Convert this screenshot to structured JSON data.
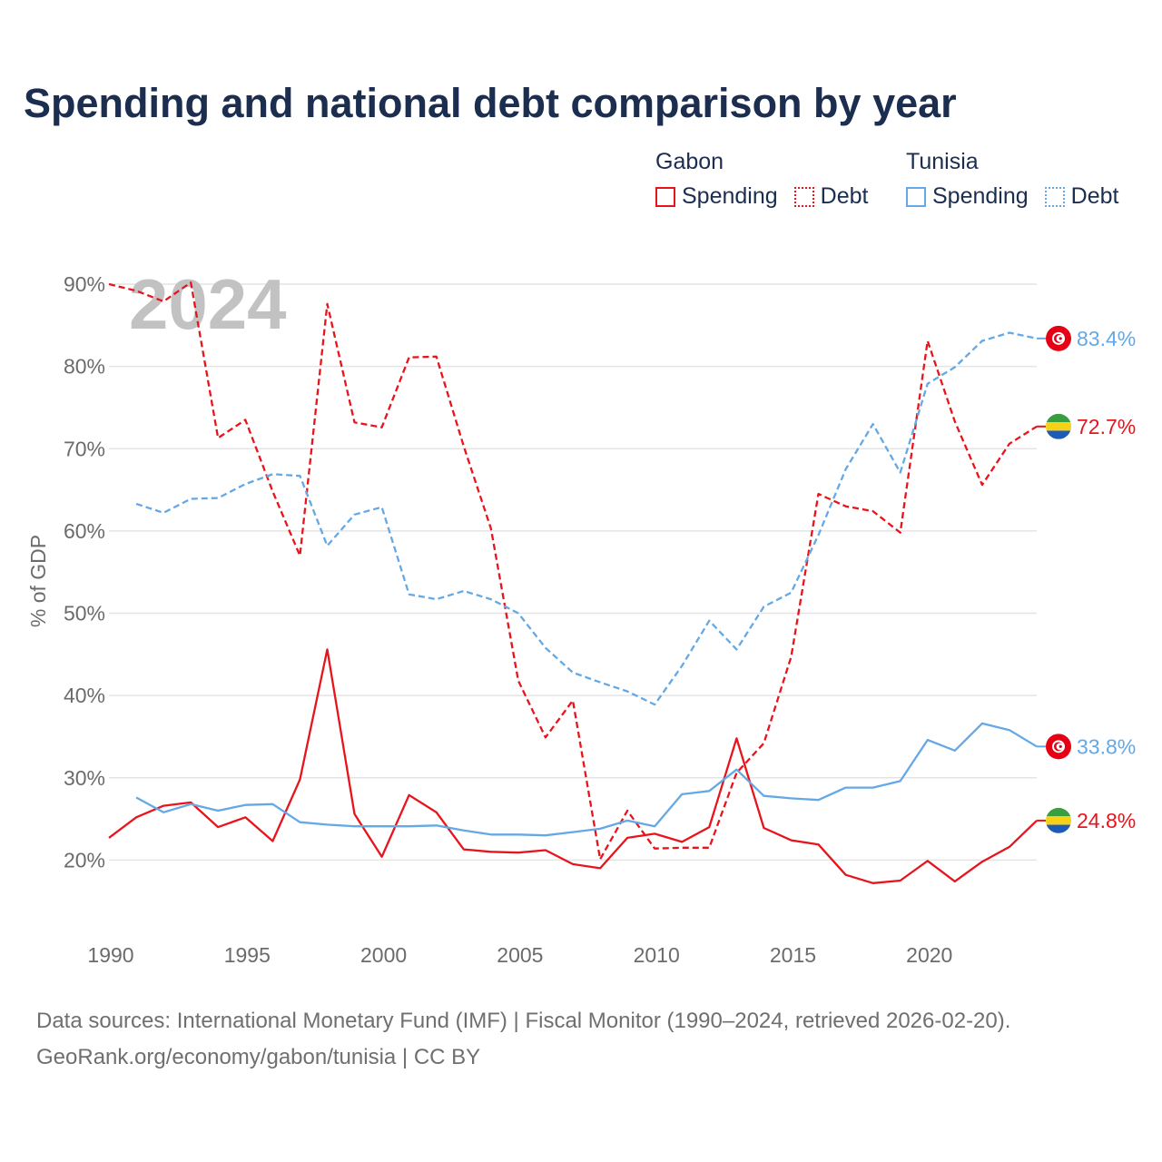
{
  "title": "Spending and national debt comparison by year",
  "legend": {
    "groups": [
      {
        "name": "Gabon",
        "items": [
          {
            "label": "Spending"
          },
          {
            "label": "Debt"
          }
        ]
      },
      {
        "name": "Tunisia",
        "items": [
          {
            "label": "Spending"
          },
          {
            "label": "Debt"
          }
        ]
      }
    ]
  },
  "year_watermark": "2024",
  "source_line1": "Data sources: International Monetary Fund (IMF) | Fiscal Monitor (1990–2024, retrieved 2026-02-20).",
  "source_line2": "GeoRank.org/economy/gabon/tunisia | CC BY",
  "colors": {
    "gabon": "#e8141c",
    "tunisia": "#64a8e6",
    "grid": "#e4e4e4",
    "title": "#1b2e4f"
  },
  "icons": {
    "gabon_flag": "gabon-flag-icon",
    "tunisia_flag": "tunisia-flag-icon"
  },
  "chart_data": {
    "type": "line",
    "ylabel": "% of GDP",
    "xlabel": "",
    "xlim": [
      1990,
      2024
    ],
    "ylim": [
      10,
      90
    ],
    "x_ticks": [
      1990,
      1995,
      2000,
      2005,
      2010,
      2015,
      2020
    ],
    "y_ticks": [
      20,
      30,
      40,
      50,
      60,
      70,
      80,
      90
    ],
    "y_tick_labels": [
      "20%",
      "30%",
      "40%",
      "50%",
      "60%",
      "70%",
      "80%",
      "90%"
    ],
    "series": [
      {
        "name": "Gabon Spending",
        "country": "gabon",
        "style": "solid",
        "x": [
          1990,
          1991,
          1992,
          1993,
          1994,
          1995,
          1996,
          1997,
          1998,
          1999,
          2000,
          2001,
          2002,
          2003,
          2004,
          2005,
          2006,
          2007,
          2008,
          2009,
          2010,
          2011,
          2012,
          2013,
          2014,
          2015,
          2016,
          2017,
          2018,
          2019,
          2020,
          2021,
          2022,
          2023,
          2024
        ],
        "values": [
          22.7,
          25.2,
          26.6,
          27.0,
          24.0,
          25.2,
          22.3,
          29.8,
          45.6,
          25.6,
          20.4,
          27.9,
          25.8,
          21.3,
          21.0,
          20.9,
          21.2,
          19.5,
          19.0,
          22.7,
          23.2,
          22.2,
          24.0,
          34.8,
          23.9,
          22.4,
          21.9,
          18.2,
          17.2,
          17.5,
          19.9,
          17.4,
          19.8,
          21.6,
          24.8
        ],
        "end_label": "24.8%"
      },
      {
        "name": "Gabon Debt",
        "country": "gabon",
        "style": "dashed",
        "x": [
          1990,
          1991,
          1992,
          1993,
          1994,
          1995,
          1996,
          1997,
          1998,
          1999,
          2000,
          2001,
          2002,
          2003,
          2004,
          2005,
          2006,
          2007,
          2008,
          2009,
          2010,
          2011,
          2012,
          2013,
          2014,
          2015,
          2016,
          2017,
          2018,
          2019,
          2020,
          2021,
          2022,
          2023,
          2024
        ],
        "values": [
          90.0,
          89.2,
          87.9,
          90.2,
          71.3,
          73.5,
          64.8,
          57.0,
          87.6,
          73.2,
          72.6,
          81.1,
          81.2,
          70.3,
          60.3,
          41.8,
          34.9,
          39.4,
          20.1,
          26.0,
          21.4,
          21.5,
          21.5,
          30.6,
          34.2,
          44.7,
          64.5,
          63.0,
          62.4,
          59.8,
          83.1,
          73.3,
          65.6,
          70.6,
          72.7
        ],
        "end_label": "72.7%"
      },
      {
        "name": "Tunisia Spending",
        "country": "tunisia",
        "style": "solid",
        "x": [
          1991,
          1992,
          1993,
          1994,
          1995,
          1996,
          1997,
          1998,
          1999,
          2000,
          2001,
          2002,
          2003,
          2004,
          2005,
          2006,
          2007,
          2008,
          2009,
          2010,
          2011,
          2012,
          2013,
          2014,
          2015,
          2016,
          2017,
          2018,
          2019,
          2020,
          2021,
          2022,
          2023,
          2024
        ],
        "values": [
          27.6,
          25.8,
          26.8,
          26.0,
          26.7,
          26.8,
          24.6,
          24.3,
          24.1,
          24.1,
          24.1,
          24.2,
          23.6,
          23.1,
          23.1,
          23.0,
          23.4,
          23.8,
          24.8,
          24.1,
          28.0,
          28.4,
          31.0,
          27.8,
          27.5,
          27.3,
          28.8,
          28.8,
          29.6,
          34.6,
          33.3,
          36.6,
          35.8,
          33.8
        ],
        "end_label": "33.8%"
      },
      {
        "name": "Tunisia Debt",
        "country": "tunisia",
        "style": "dashed",
        "x": [
          1991,
          1992,
          1993,
          1994,
          1995,
          1996,
          1997,
          1998,
          1999,
          2000,
          2001,
          2002,
          2003,
          2004,
          2005,
          2006,
          2007,
          2008,
          2009,
          2010,
          2011,
          2012,
          2013,
          2014,
          2015,
          2016,
          2017,
          2018,
          2019,
          2020,
          2021,
          2022,
          2023,
          2024
        ],
        "values": [
          63.3,
          62.2,
          63.9,
          64.0,
          65.7,
          66.9,
          66.7,
          58.2,
          62.0,
          62.9,
          52.3,
          51.7,
          52.7,
          51.7,
          50.0,
          45.8,
          42.8,
          41.6,
          40.5,
          38.9,
          43.6,
          49.1,
          45.6,
          50.8,
          52.5,
          59.5,
          67.5,
          73.0,
          67.1,
          77.9,
          79.9,
          83.1,
          84.1,
          83.4
        ],
        "end_label": "83.4%"
      }
    ]
  }
}
